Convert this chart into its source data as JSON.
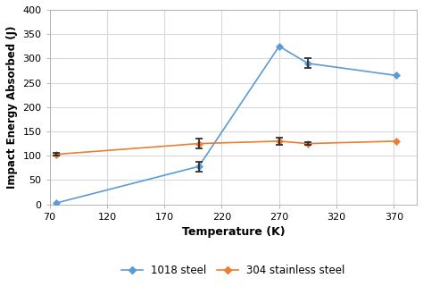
{
  "steel_1018": {
    "x": [
      76,
      200,
      270,
      295,
      372
    ],
    "y": [
      3,
      78,
      325,
      290,
      265
    ],
    "yerr_neg": [
      0,
      10,
      0,
      10,
      0
    ],
    "yerr_pos": [
      0,
      10,
      0,
      10,
      0
    ],
    "color": "#5B9BD5",
    "label": "1018 steel"
  },
  "steel_304": {
    "x": [
      76,
      200,
      270,
      295,
      372
    ],
    "y": [
      103,
      125,
      130,
      125,
      130
    ],
    "yerr_neg": [
      3,
      10,
      8,
      3,
      0
    ],
    "yerr_pos": [
      3,
      10,
      8,
      3,
      0
    ],
    "color": "#ED7D31",
    "label": "304 stainless steel"
  },
  "xlabel": "Temperature (K)",
  "ylabel": "Impact Energy Absorbed (J)",
  "xlim": [
    70,
    390
  ],
  "ylim": [
    0,
    400
  ],
  "xticks": [
    70,
    120,
    170,
    220,
    270,
    320,
    370
  ],
  "yticks": [
    0,
    50,
    100,
    150,
    200,
    250,
    300,
    350,
    400
  ],
  "grid_color": "#D9D9D9",
  "background_color": "#FFFFFF"
}
